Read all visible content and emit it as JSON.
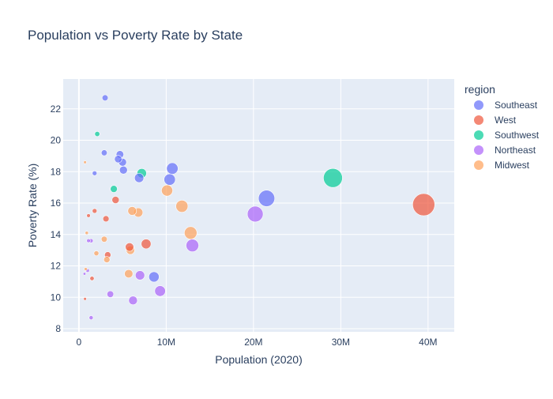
{
  "chart_data": {
    "type": "scatter",
    "title": "Population vs Poverty Rate by State",
    "xlabel": "Population (2020)",
    "ylabel": "Poverty Rate (%)",
    "xlim": [
      -1800000,
      43000000
    ],
    "ylim": [
      7.8,
      23.9
    ],
    "x_ticks": [
      {
        "value": 0,
        "label": "0"
      },
      {
        "value": 10000000,
        "label": "10M"
      },
      {
        "value": 20000000,
        "label": "20M"
      },
      {
        "value": 30000000,
        "label": "30M"
      },
      {
        "value": 40000000,
        "label": "40M"
      }
    ],
    "y_ticks": [
      {
        "value": 8,
        "label": "8"
      },
      {
        "value": 10,
        "label": "10"
      },
      {
        "value": 12,
        "label": "12"
      },
      {
        "value": 14,
        "label": "14"
      },
      {
        "value": 16,
        "label": "16"
      },
      {
        "value": 18,
        "label": "18"
      },
      {
        "value": 20,
        "label": "20"
      },
      {
        "value": 22,
        "label": "22"
      }
    ],
    "grid": true,
    "legend": {
      "title": "region",
      "placement": "right"
    },
    "size_encodes": "population",
    "series": [
      {
        "name": "Southeast",
        "color": "#636efa",
        "points": [
          {
            "x": 3000000,
            "y": 22.7
          },
          {
            "x": 2900000,
            "y": 19.2
          },
          {
            "x": 4700000,
            "y": 19.1
          },
          {
            "x": 4500000,
            "y": 18.8
          },
          {
            "x": 5000000,
            "y": 18.6
          },
          {
            "x": 5100000,
            "y": 18.1
          },
          {
            "x": 1800000,
            "y": 17.9
          },
          {
            "x": 6900000,
            "y": 17.6
          },
          {
            "x": 10700000,
            "y": 18.2
          },
          {
            "x": 10400000,
            "y": 17.5
          },
          {
            "x": 21500000,
            "y": 16.3
          },
          {
            "x": 8600000,
            "y": 11.3
          }
        ]
      },
      {
        "name": "West",
        "color": "#ef553b",
        "points": [
          {
            "x": 39500000,
            "y": 15.9
          },
          {
            "x": 4200000,
            "y": 16.2
          },
          {
            "x": 1800000,
            "y": 15.5
          },
          {
            "x": 1100000,
            "y": 15.2
          },
          {
            "x": 3100000,
            "y": 15.0
          },
          {
            "x": 7700000,
            "y": 13.4
          },
          {
            "x": 5800000,
            "y": 13.2
          },
          {
            "x": 3300000,
            "y": 12.7
          },
          {
            "x": 1500000,
            "y": 11.2
          },
          {
            "x": 700000,
            "y": 9.9
          }
        ]
      },
      {
        "name": "Southwest",
        "color": "#00cc96",
        "points": [
          {
            "x": 2100000,
            "y": 20.4
          },
          {
            "x": 7200000,
            "y": 17.9
          },
          {
            "x": 4000000,
            "y": 16.9
          },
          {
            "x": 29100000,
            "y": 17.6
          }
        ]
      },
      {
        "name": "Northeast",
        "color": "#ab63fa",
        "points": [
          {
            "x": 20200000,
            "y": 15.3
          },
          {
            "x": 13000000,
            "y": 13.3
          },
          {
            "x": 9300000,
            "y": 10.4
          },
          {
            "x": 7000000,
            "y": 11.4
          },
          {
            "x": 6200000,
            "y": 9.8
          },
          {
            "x": 3600000,
            "y": 10.2
          },
          {
            "x": 1100000,
            "y": 13.6
          },
          {
            "x": 1400000,
            "y": 13.6
          },
          {
            "x": 1000000,
            "y": 11.7
          },
          {
            "x": 1400000,
            "y": 8.7
          },
          {
            "x": 640000,
            "y": 11.5
          }
        ]
      },
      {
        "name": "Midwest",
        "color": "#ffa15a",
        "points": [
          {
            "x": 10100000,
            "y": 16.8
          },
          {
            "x": 11800000,
            "y": 15.8
          },
          {
            "x": 12800000,
            "y": 14.1
          },
          {
            "x": 6100000,
            "y": 15.5
          },
          {
            "x": 6800000,
            "y": 15.4
          },
          {
            "x": 5900000,
            "y": 13.0
          },
          {
            "x": 5700000,
            "y": 11.5
          },
          {
            "x": 2900000,
            "y": 13.7
          },
          {
            "x": 3200000,
            "y": 12.4
          },
          {
            "x": 2000000,
            "y": 12.8
          },
          {
            "x": 900000,
            "y": 14.1
          },
          {
            "x": 780000,
            "y": 11.8
          },
          {
            "x": 700000,
            "y": 18.6
          }
        ]
      }
    ]
  }
}
